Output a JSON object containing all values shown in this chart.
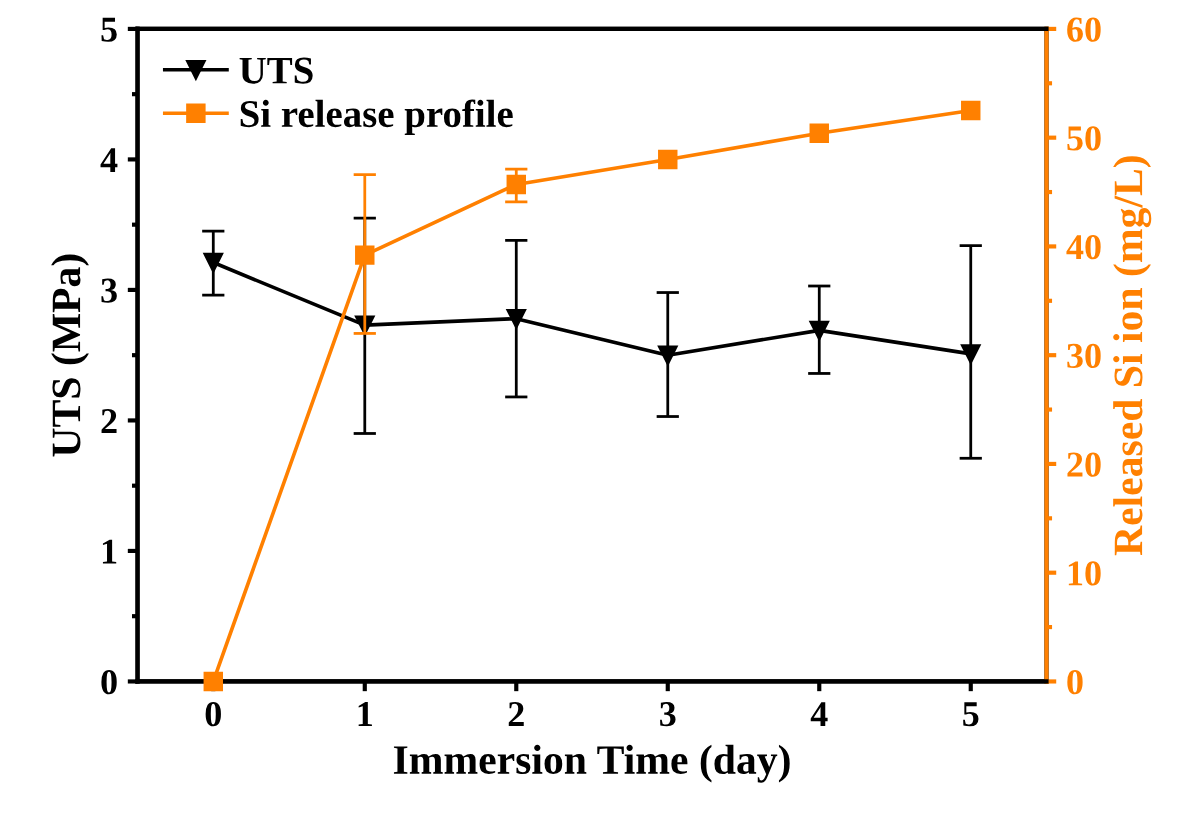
{
  "chart_data": {
    "type": "line",
    "xlabel": "Immersion Time (day)",
    "ylabel": "UTS (MPa)",
    "y2label": "Released Si ion (mg/L)",
    "x": [
      0,
      1,
      2,
      3,
      4,
      5
    ],
    "xlim": [
      -0.5,
      5.5
    ],
    "xticks": [
      0,
      1,
      2,
      3,
      4,
      5
    ],
    "ylim": [
      0,
      5
    ],
    "yticks": [
      0,
      1,
      2,
      3,
      4,
      5
    ],
    "y2lim": [
      0,
      60
    ],
    "y2ticks": [
      0,
      10,
      20,
      30,
      40,
      50,
      60
    ],
    "legend": "top left",
    "grid": false,
    "series": [
      {
        "name": "UTS",
        "color": "#000000",
        "marker": "triangle",
        "values": [
          3.21,
          2.73,
          2.78,
          2.5,
          2.69,
          2.51
        ],
        "errors": [
          [
            2.96,
            3.45
          ],
          [
            1.9,
            3.55
          ],
          [
            2.18,
            3.38
          ],
          [
            2.03,
            2.98
          ],
          [
            2.36,
            3.03
          ],
          [
            1.71,
            3.34
          ]
        ]
      },
      {
        "name": "Si release profile",
        "color": "#ff8000",
        "marker": "square",
        "axis": "y2",
        "values": [
          0,
          39.2,
          45.7,
          48.0,
          50.4,
          52.5
        ],
        "errors": [
          null,
          [
            32.0,
            46.6
          ],
          [
            44.1,
            47.1
          ],
          null,
          null,
          null
        ]
      }
    ]
  }
}
